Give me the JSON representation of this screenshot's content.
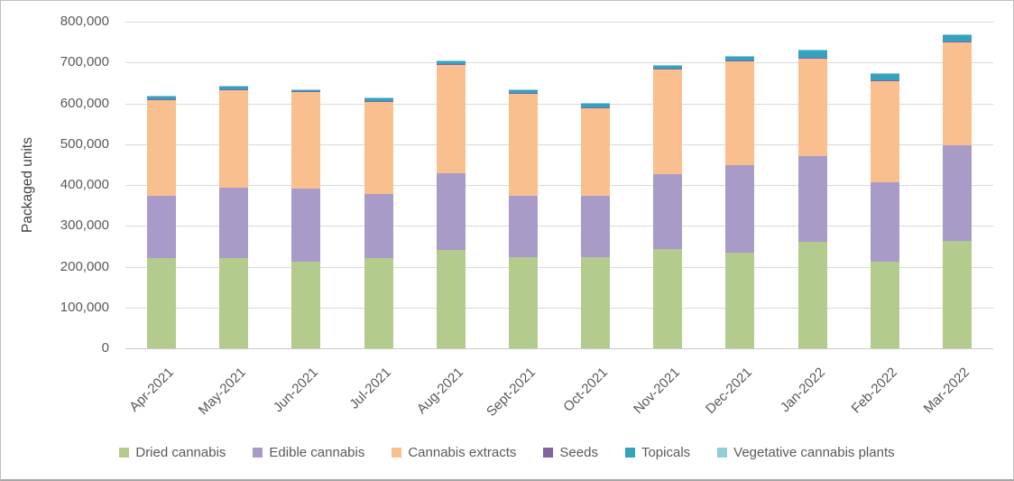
{
  "chart_data": {
    "type": "bar",
    "stacked": true,
    "title": "",
    "xlabel": "",
    "ylabel": "Packaged units",
    "ylim": [
      0,
      800000
    ],
    "y_tick_step": 100000,
    "grid": true,
    "legend_position": "bottom",
    "categories": [
      "Apr-2021",
      "May-2021",
      "Jun-2021",
      "Jul-2021",
      "Aug-2021",
      "Sept-2021",
      "Oct-2021",
      "Nov-2021",
      "Dec-2021",
      "Jan-2022",
      "Feb-2022",
      "Mar-2022"
    ],
    "series": [
      {
        "name": "Dried cannabis",
        "color": "#b3cc8e",
        "values": [
          222000,
          220000,
          212000,
          221000,
          240000,
          224000,
          223000,
          243000,
          234000,
          260000,
          212000,
          263000
        ]
      },
      {
        "name": "Edible cannabis",
        "color": "#a89bc8",
        "values": [
          152000,
          174000,
          179000,
          156000,
          189000,
          150000,
          150000,
          184000,
          215000,
          210000,
          194000,
          234000
        ]
      },
      {
        "name": "Cannabis extracts",
        "color": "#fabf8f",
        "values": [
          236000,
          239000,
          237000,
          227000,
          266000,
          251000,
          217000,
          257000,
          254000,
          241000,
          250000,
          253000
        ]
      },
      {
        "name": "Seeds",
        "color": "#8064a2",
        "values": [
          1000,
          1000,
          1000,
          1000,
          1000,
          1000,
          1000,
          1000,
          1000,
          1000,
          1000,
          1000
        ]
      },
      {
        "name": "Topicals",
        "color": "#35a2c0",
        "values": [
          7000,
          8000,
          5000,
          8000,
          7000,
          8000,
          10000,
          9000,
          12000,
          18000,
          14000,
          15000
        ]
      },
      {
        "name": "Vegetative cannabis plants",
        "color": "#92cddc",
        "values": [
          1000,
          1000,
          1000,
          1000,
          1000,
          1000,
          1000,
          1000,
          1000,
          2000,
          2000,
          2000
        ]
      }
    ],
    "y_tick_labels": [
      "0",
      "100,000",
      "200,000",
      "300,000",
      "400,000",
      "500,000",
      "600,000",
      "700,000",
      "800,000"
    ]
  },
  "colors": {
    "text": "#595959",
    "axis_title_text": "#404040",
    "gridline": "#d9d9d9",
    "axis_line": "#c9c9c9",
    "background": "#ffffff",
    "border": "#bfbfbf"
  }
}
